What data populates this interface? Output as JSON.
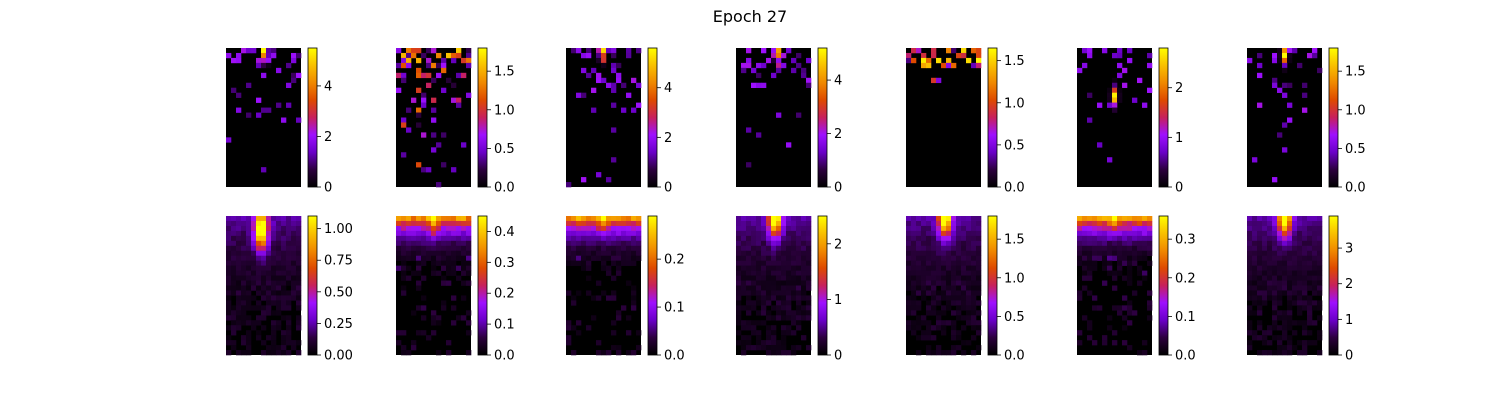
{
  "figure": {
    "title": "Epoch 27"
  },
  "colormap": {
    "name": "gnuplot",
    "stops": [
      "#000000",
      "#2c003e",
      "#6a00c8",
      "#9e10ff",
      "#c7205c",
      "#de4a00",
      "#f08800",
      "#f9c000",
      "#ffff00"
    ]
  },
  "chart_data": [
    {
      "type": "heatmap",
      "row": 1,
      "col": 1,
      "rows": 28,
      "cols": 15,
      "vmin": 0,
      "vmax": 5.5,
      "ticks": [
        "0",
        "2",
        "4"
      ],
      "tick_values": [
        0,
        2,
        4
      ],
      "pattern": "sparse",
      "hotspot": [
        0.52,
        0.04
      ],
      "density": 0.45
    },
    {
      "type": "heatmap",
      "row": 1,
      "col": 2,
      "rows": 28,
      "cols": 15,
      "vmin": 0,
      "vmax": 1.8,
      "ticks": [
        "0.0",
        "0.5",
        "1.0",
        "1.5"
      ],
      "tick_values": [
        0,
        0.5,
        1.0,
        1.5
      ],
      "pattern": "sparse-bright",
      "hotspot": [
        0.2,
        0.2
      ],
      "density": 0.6
    },
    {
      "type": "heatmap",
      "row": 1,
      "col": 3,
      "rows": 28,
      "cols": 15,
      "vmin": 0,
      "vmax": 5.6,
      "ticks": [
        "0",
        "2",
        "4"
      ],
      "tick_values": [
        0,
        2,
        4
      ],
      "pattern": "sparse",
      "hotspot": [
        0.48,
        0.02
      ],
      "density": 0.5
    },
    {
      "type": "heatmap",
      "row": 1,
      "col": 4,
      "rows": 28,
      "cols": 15,
      "vmin": 0,
      "vmax": 5.2,
      "ticks": [
        "0",
        "2",
        "4"
      ],
      "tick_values": [
        0,
        2,
        4
      ],
      "pattern": "sparse",
      "hotspot": [
        0.55,
        0.03
      ],
      "density": 0.45
    },
    {
      "type": "heatmap",
      "row": 1,
      "col": 5,
      "rows": 28,
      "cols": 15,
      "vmin": 0,
      "vmax": 1.65,
      "ticks": [
        "0.0",
        "0.5",
        "1.0",
        "1.5"
      ],
      "tick_values": [
        0,
        0.5,
        1.0,
        1.5
      ],
      "pattern": "top-only",
      "hotspot": [
        0.3,
        0.0
      ],
      "density": 0.35
    },
    {
      "type": "heatmap",
      "row": 1,
      "col": 6,
      "rows": 28,
      "cols": 15,
      "vmin": 0,
      "vmax": 2.8,
      "ticks": [
        "0",
        "1",
        "2"
      ],
      "tick_values": [
        0,
        1,
        2
      ],
      "pattern": "sparse",
      "hotspot": [
        0.5,
        0.35
      ],
      "density": 0.35
    },
    {
      "type": "heatmap",
      "row": 1,
      "col": 7,
      "rows": 28,
      "cols": 15,
      "vmin": 0,
      "vmax": 1.8,
      "ticks": [
        "0.0",
        "0.5",
        "1.0",
        "1.5"
      ],
      "tick_values": [
        0,
        0.5,
        1.0,
        1.5
      ],
      "pattern": "sparse",
      "hotspot": [
        0.5,
        0.05
      ],
      "density": 0.3
    },
    {
      "type": "heatmap",
      "row": 2,
      "col": 1,
      "rows": 28,
      "cols": 15,
      "vmin": 0,
      "vmax": 1.1,
      "ticks": [
        "0.00",
        "0.25",
        "0.50",
        "0.75",
        "1.00"
      ],
      "tick_values": [
        0,
        0.25,
        0.5,
        0.75,
        1.0
      ],
      "pattern": "smooth",
      "hotspot": [
        0.47,
        0.1
      ],
      "density": 0.8
    },
    {
      "type": "heatmap",
      "row": 2,
      "col": 2,
      "rows": 28,
      "cols": 15,
      "vmin": 0,
      "vmax": 0.45,
      "ticks": [
        "0.0",
        "0.1",
        "0.2",
        "0.3",
        "0.4"
      ],
      "tick_values": [
        0,
        0.1,
        0.2,
        0.3,
        0.4
      ],
      "pattern": "band-top",
      "hotspot": [
        0.5,
        0.05
      ],
      "density": 0.8
    },
    {
      "type": "heatmap",
      "row": 2,
      "col": 3,
      "rows": 28,
      "cols": 15,
      "vmin": 0,
      "vmax": 0.29,
      "ticks": [
        "0.0",
        "0.1",
        "0.2"
      ],
      "tick_values": [
        0,
        0.1,
        0.2
      ],
      "pattern": "band-top",
      "hotspot": [
        0.5,
        0.0
      ],
      "density": 0.7
    },
    {
      "type": "heatmap",
      "row": 2,
      "col": 4,
      "rows": 28,
      "cols": 15,
      "vmin": 0,
      "vmax": 2.5,
      "ticks": [
        "0",
        "1",
        "2"
      ],
      "tick_values": [
        0,
        1,
        2
      ],
      "pattern": "smooth",
      "hotspot": [
        0.52,
        0.0
      ],
      "density": 0.6
    },
    {
      "type": "heatmap",
      "row": 2,
      "col": 5,
      "rows": 28,
      "cols": 15,
      "vmin": 0,
      "vmax": 1.8,
      "ticks": [
        "0.0",
        "0.5",
        "1.0",
        "1.5"
      ],
      "tick_values": [
        0,
        0.5,
        1.0,
        1.5
      ],
      "pattern": "smooth",
      "hotspot": [
        0.52,
        0.0
      ],
      "density": 0.7
    },
    {
      "type": "heatmap",
      "row": 2,
      "col": 6,
      "rows": 28,
      "cols": 15,
      "vmin": 0,
      "vmax": 0.36,
      "ticks": [
        "0.0",
        "0.1",
        "0.2",
        "0.3"
      ],
      "tick_values": [
        0,
        0.1,
        0.2,
        0.3
      ],
      "pattern": "band-top",
      "hotspot": [
        0.5,
        0.0
      ],
      "density": 0.8
    },
    {
      "type": "heatmap",
      "row": 2,
      "col": 7,
      "rows": 28,
      "cols": 15,
      "vmin": 0,
      "vmax": 3.9,
      "ticks": [
        "0",
        "1",
        "2",
        "3"
      ],
      "tick_values": [
        0,
        1,
        2,
        3
      ],
      "pattern": "smooth",
      "hotspot": [
        0.5,
        0.0
      ],
      "density": 0.6
    }
  ]
}
